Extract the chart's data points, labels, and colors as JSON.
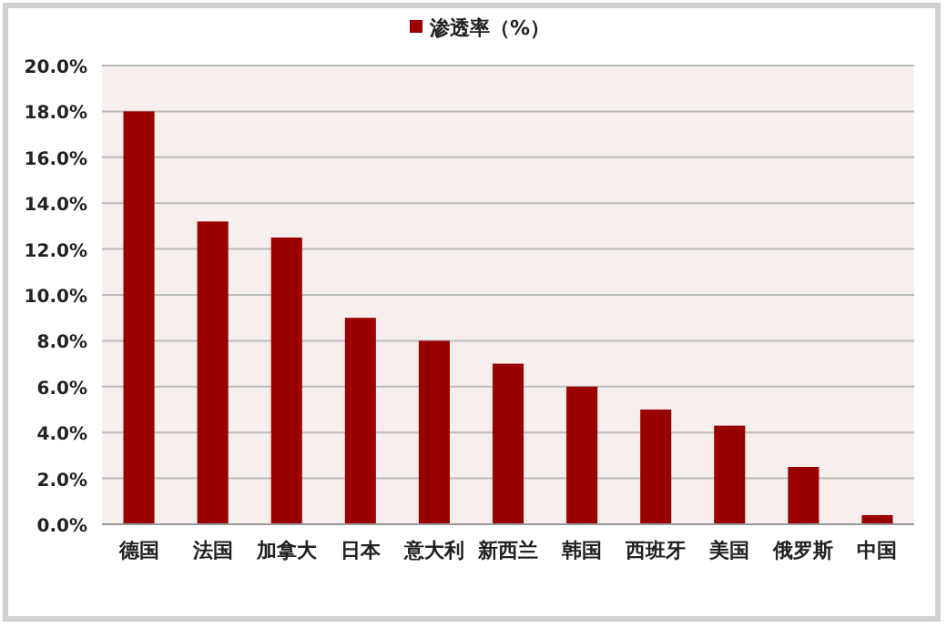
{
  "chart_data": {
    "type": "bar",
    "categories": [
      "德国",
      "法国",
      "加拿大",
      "日本",
      "意大利",
      "新西兰",
      "韩国",
      "西班牙",
      "美国",
      "俄罗斯",
      "中国"
    ],
    "series": [
      {
        "name": "渗透率（%）",
        "color": "#990000",
        "values": [
          18.0,
          13.2,
          12.5,
          9.0,
          8.0,
          7.0,
          6.0,
          5.0,
          4.3,
          2.5,
          0.4
        ]
      }
    ],
    "ylim": [
      0,
      20
    ],
    "yticks": [
      {
        "value": 0,
        "label": "0.0%"
      },
      {
        "value": 2,
        "label": "2.0%"
      },
      {
        "value": 4,
        "label": "4.0%"
      },
      {
        "value": 6,
        "label": "6.0%"
      },
      {
        "value": 8,
        "label": "8.0%"
      },
      {
        "value": 10,
        "label": "10.0%"
      },
      {
        "value": 12,
        "label": "12.0%"
      },
      {
        "value": 14,
        "label": "14.0%"
      },
      {
        "value": 16,
        "label": "16.0%"
      },
      {
        "value": 18,
        "label": "18.0%"
      },
      {
        "value": 20,
        "label": "20.0%"
      }
    ],
    "grid": "y",
    "legend": "top"
  }
}
